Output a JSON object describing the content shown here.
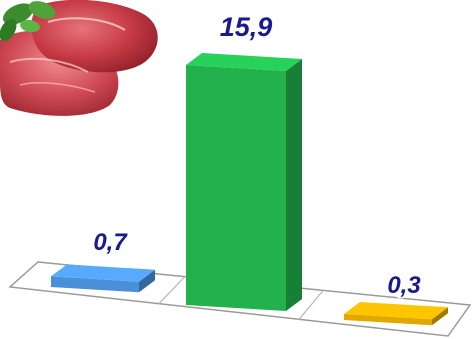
{
  "chart_data": {
    "type": "bar",
    "categories": [
      "",
      "",
      ""
    ],
    "values": [
      0.7,
      15.9,
      0.3
    ],
    "value_labels": [
      "0,7",
      "15,9",
      "0,3"
    ],
    "colors": [
      "#4a90d9",
      "#22b14c",
      "#e0a800"
    ],
    "label_color": "#1a1a8c",
    "ylim": [
      0,
      15.9
    ],
    "grid": false,
    "legend": "none",
    "style": "3d"
  },
  "decoration": {
    "image_icon": "raw-meat-photo"
  }
}
